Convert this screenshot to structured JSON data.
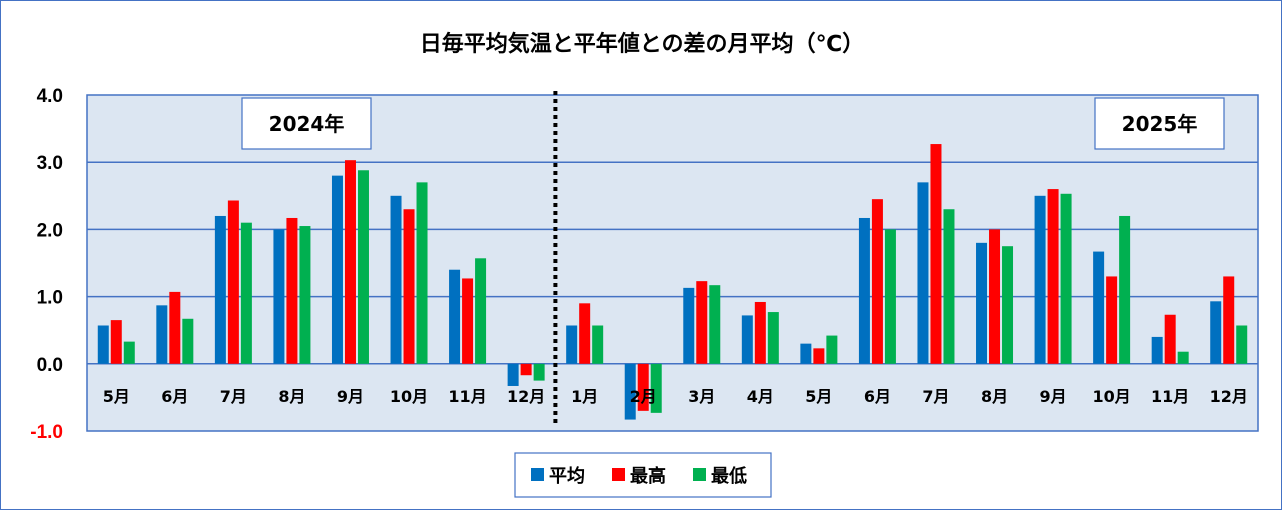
{
  "chart_data": {
    "type": "bar",
    "title": "日毎平均気温と平年値との差の月平均（℃）",
    "categories": [
      "5月",
      "6月",
      "7月",
      "8月",
      "9月",
      "10月",
      "11月",
      "12月",
      "1月",
      "2月",
      "3月",
      "4月",
      "5月",
      "6月",
      "7月",
      "8月",
      "9月",
      "10月",
      "11月",
      "12月"
    ],
    "series": [
      {
        "name": "平均",
        "color": "#0070c0",
        "values": [
          0.57,
          0.87,
          2.2,
          2.0,
          2.8,
          2.5,
          1.4,
          -0.33,
          0.57,
          -0.83,
          1.13,
          0.72,
          0.3,
          2.17,
          2.7,
          1.8,
          2.5,
          1.67,
          0.4,
          0.93
        ]
      },
      {
        "name": "最高",
        "color": "#ff0000",
        "values": [
          0.65,
          1.07,
          2.43,
          2.17,
          3.03,
          2.3,
          1.27,
          -0.17,
          0.9,
          -0.7,
          1.23,
          0.92,
          0.23,
          2.45,
          3.27,
          2.0,
          2.6,
          1.3,
          0.73,
          1.3
        ]
      },
      {
        "name": "最低",
        "color": "#00b050",
        "values": [
          0.33,
          0.67,
          2.1,
          2.05,
          2.88,
          2.7,
          1.57,
          -0.25,
          0.57,
          -0.73,
          1.17,
          0.77,
          0.42,
          2.0,
          2.3,
          1.75,
          2.53,
          2.2,
          0.18,
          0.57
        ]
      }
    ],
    "ylim": [
      -1.0,
      4.0
    ],
    "yticks": [
      "4.0",
      "3.0",
      "2.0",
      "1.0",
      "0.0",
      "-1.0"
    ],
    "grid": true,
    "legend": "bottom-center",
    "annotations": [
      {
        "text": "2024年",
        "position": "top-left"
      },
      {
        "text": "2025年",
        "position": "top-right"
      }
    ],
    "divider_after_category_index": 7
  }
}
